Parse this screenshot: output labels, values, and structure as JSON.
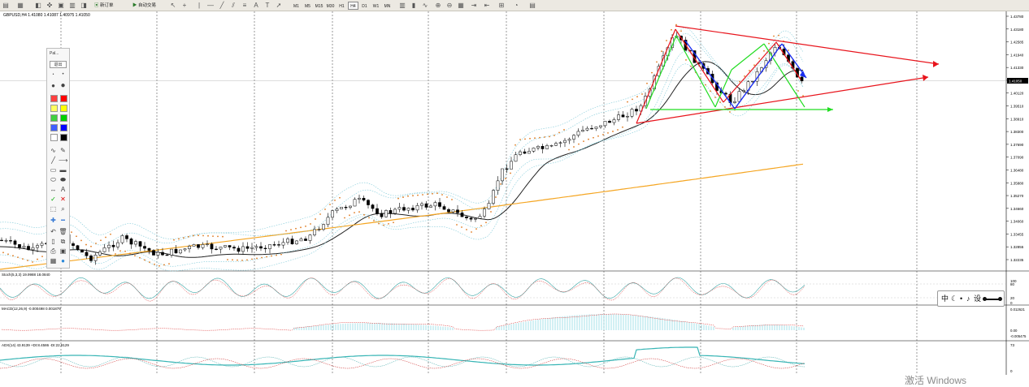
{
  "toolbar": {
    "new_order_label": "新订单",
    "autotrade_label": "自动交易",
    "timeframes": [
      "M1",
      "M5",
      "M15",
      "M30",
      "H1",
      "H4",
      "D1",
      "W1",
      "MN"
    ]
  },
  "chart": {
    "title": "GBPUSD,H4  1.41080 1.41087 1.40975 1.41050",
    "price_axis": [
      "1.43780",
      "1.43180",
      "1.42585",
      "1.41940",
      "1.41330",
      "1.40730",
      "1.40120",
      "1.39510",
      "1.38910",
      "1.38300",
      "1.37690",
      "1.37090",
      "1.36480",
      "1.35880",
      "1.35270",
      "1.34660",
      "1.34060",
      "1.33455",
      "1.32855",
      "1.32235"
    ],
    "current_price": "1.41050",
    "colors": {
      "bull": "#ffffff",
      "bear": "#000000",
      "sma_fast": "#222222",
      "sma_slow": "#f5a623",
      "bollinger": "#7ec9d8",
      "sar": "#e07b20",
      "triangle": "#e8141c",
      "wave_red": "#e8141c",
      "wave_green": "#22dd22",
      "wave_blue": "#1a2ef0"
    }
  },
  "stoch": {
    "title": "Stoch(5,3,3) 19.9988 18.0840",
    "levels": [
      "100",
      "80",
      "20",
      "0"
    ]
  },
  "macd": {
    "title": "MACD(12,26,9) -0.000498 0.001879",
    "levels": [
      "0.012621",
      "0.00",
      "-0.005475"
    ]
  },
  "adx": {
    "title": "ADX(14) 43.9139 +DI:8.4586 -DI:22.9129",
    "levels": [
      "73",
      "0"
    ]
  },
  "palette": {
    "title": "Pal...",
    "exit_label": "退出",
    "colors": [
      "#ff4040",
      "#ff0000",
      "#ffff60",
      "#ffff00",
      "#40d040",
      "#00d000",
      "#4060ff",
      "#0000ff",
      "#ffffff",
      "#000000"
    ]
  },
  "mini_toolbar": {
    "items": [
      "中",
      "☾",
      "•",
      "♪",
      "设"
    ]
  },
  "watermark": "激活 Windows"
}
